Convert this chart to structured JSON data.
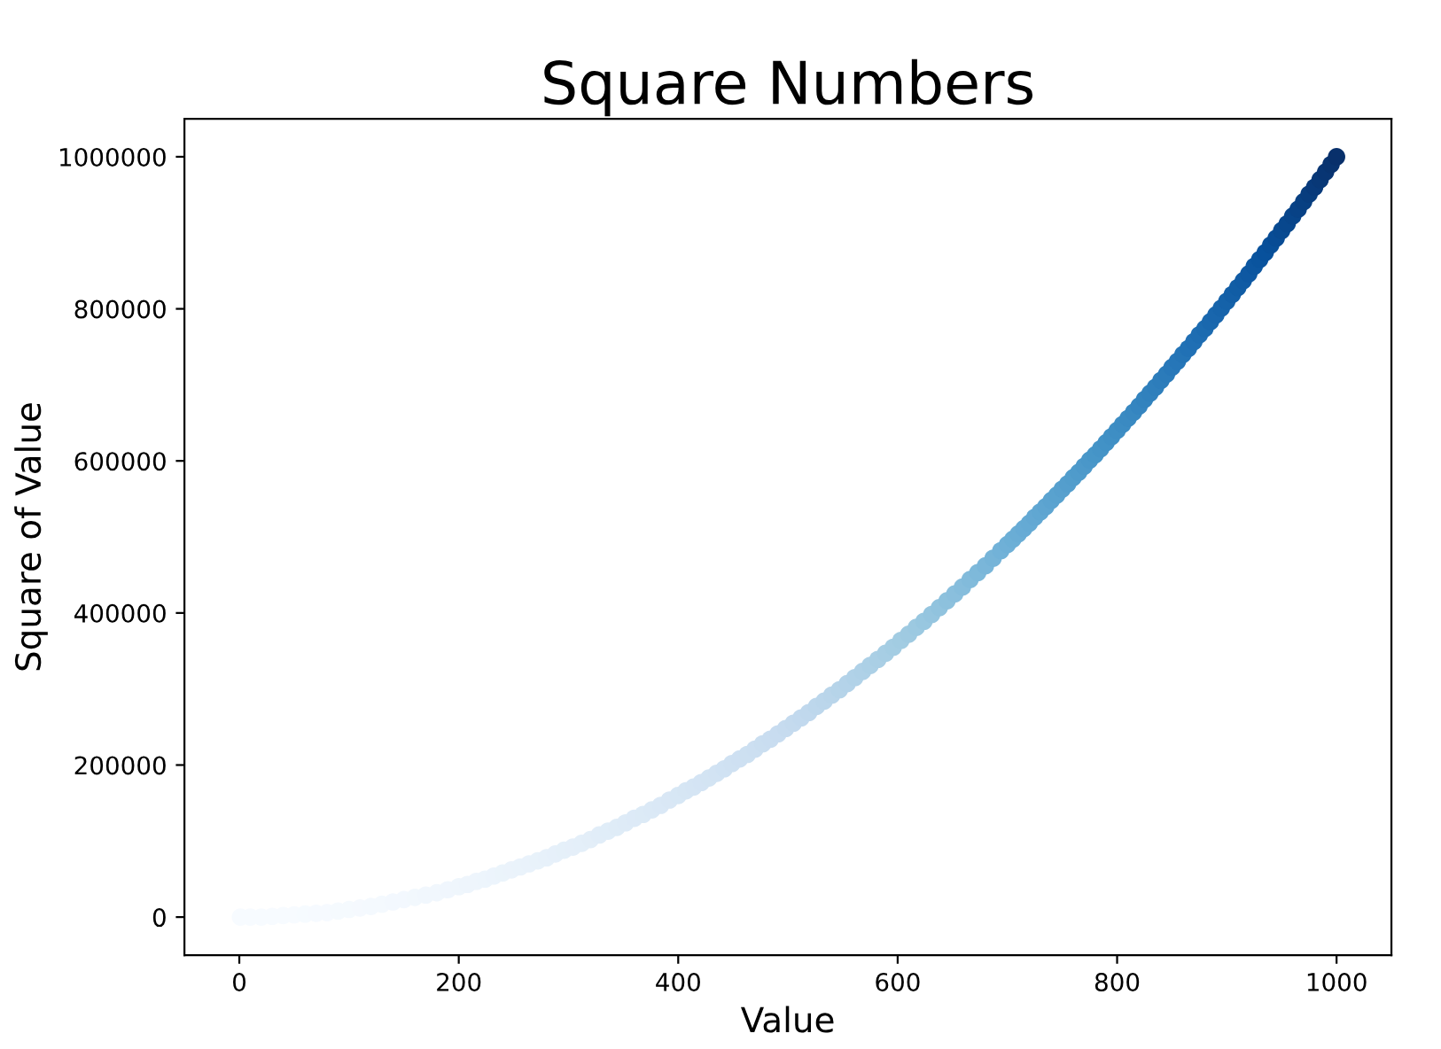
{
  "chart_data": {
    "type": "scatter",
    "title": "Square Numbers",
    "xlabel": "Value",
    "ylabel": "Square of Value",
    "x": [
      1,
      10,
      20,
      30,
      40,
      50,
      60,
      70,
      80,
      90,
      100,
      110,
      120,
      130,
      140,
      150,
      160,
      170,
      180,
      190,
      200,
      208,
      216,
      224,
      232,
      240,
      248,
      256,
      264,
      272,
      280,
      288,
      296,
      304,
      312,
      320,
      328,
      336,
      344,
      352,
      360,
      368,
      376,
      384,
      392,
      400,
      407,
      414,
      421,
      428,
      435,
      442,
      449,
      456,
      463,
      470,
      477,
      484,
      491,
      498,
      505,
      512,
      519,
      526,
      533,
      540,
      547,
      554,
      561,
      568,
      575,
      582,
      589,
      596,
      603,
      610,
      617,
      624,
      631,
      638,
      645,
      652,
      659,
      666,
      673,
      680,
      687,
      694,
      700,
      705,
      710,
      715,
      720,
      725,
      730,
      735,
      740,
      745,
      750,
      755,
      760,
      765,
      770,
      775,
      780,
      785,
      790,
      795,
      800,
      805,
      810,
      815,
      820,
      825,
      830,
      835,
      840,
      845,
      850,
      855,
      860,
      865,
      870,
      875,
      880,
      885,
      890,
      895,
      900,
      905,
      910,
      915,
      920,
      925,
      930,
      935,
      940,
      945,
      950,
      955,
      960,
      965,
      970,
      975,
      980,
      985,
      990,
      995,
      1000
    ],
    "values": [
      0,
      0,
      0,
      1000,
      2000,
      3000,
      4000,
      5000,
      6000,
      8000,
      10000,
      12000,
      14000,
      17000,
      20000,
      23000,
      26000,
      29000,
      32000,
      36000,
      40000,
      43000,
      47000,
      50000,
      54000,
      58000,
      62000,
      66000,
      70000,
      74000,
      78000,
      83000,
      88000,
      92000,
      97000,
      102000,
      108000,
      113000,
      118000,
      124000,
      130000,
      135000,
      141000,
      147000,
      154000,
      160000,
      166000,
      171000,
      177000,
      183000,
      189000,
      195000,
      202000,
      208000,
      214000,
      221000,
      228000,
      234000,
      241000,
      248000,
      255000,
      262000,
      269000,
      277000,
      284000,
      292000,
      299000,
      307000,
      315000,
      323000,
      331000,
      339000,
      347000,
      355000,
      364000,
      372000,
      381000,
      389000,
      398000,
      407000,
      416000,
      425000,
      434000,
      444000,
      453000,
      462000,
      472000,
      482000,
      490000,
      497000,
      504000,
      511000,
      518000,
      526000,
      533000,
      540000,
      548000,
      555000,
      563000,
      570000,
      578000,
      585000,
      593000,
      601000,
      608000,
      616000,
      624000,
      632000,
      640000,
      648000,
      656000,
      664000,
      672000,
      681000,
      689000,
      697000,
      706000,
      714000,
      723000,
      731000,
      740000,
      748000,
      757000,
      766000,
      774000,
      783000,
      792000,
      801000,
      810000,
      819000,
      828000,
      837000,
      846000,
      856000,
      865000,
      874000,
      884000,
      893000,
      903000,
      912000,
      922000,
      931000,
      941000,
      951000,
      960000,
      970000,
      980000,
      990000,
      1000000
    ],
    "colors": [
      "#f7fbff",
      "#f7fbff",
      "#f7fbff",
      "#f7fbff",
      "#f7fbff",
      "#f7fbff",
      "#f6fbff",
      "#f6faff",
      "#f6faff",
      "#f5fafe",
      "#f5fafe",
      "#f5f9fe",
      "#f4f9fe",
      "#f4f9fe",
      "#f3f8fe",
      "#f3f8fe",
      "#f2f8fd",
      "#f1f7fd",
      "#f1f7fd",
      "#f0f6fd",
      "#eff6fc",
      "#eef5fc",
      "#eef5fc",
      "#edf5fc",
      "#ecf4fc",
      "#ebf4fb",
      "#ebf3fb",
      "#eaf3fb",
      "#e9f2fb",
      "#e8f2fa",
      "#e7f1fa",
      "#e6f0fa",
      "#e5f0f9",
      "#e5eff9",
      "#e4eff9",
      "#e3eef8",
      "#e1edf8",
      "#e0edf8",
      "#dfecf7",
      "#deebf7",
      "#ddeaf7",
      "#dceaf6",
      "#dbe9f6",
      "#dae8f6",
      "#d9e7f5",
      "#d7e7f5",
      "#d6e6f4",
      "#d5e5f4",
      "#d4e4f4",
      "#d3e4f3",
      "#d2e3f3",
      "#d0e2f3",
      "#cfe1f2",
      "#cee0f2",
      "#cde0f1",
      "#ccdff1",
      "#cadef0",
      "#c9ddf0",
      "#c8dcf0",
      "#c6dbef",
      "#c4daee",
      "#c2d9ee",
      "#c0d8ed",
      "#bdd7ec",
      "#bbd6eb",
      "#b9d5ea",
      "#b6d4e9",
      "#b4d3e9",
      "#b1d2e8",
      "#afd1e7",
      "#acd0e6",
      "#aacfe5",
      "#a7cee4",
      "#a4cde3",
      "#a2cce2",
      "#9fcae1",
      "#9cc9e1",
      "#98c7e0",
      "#95c5df",
      "#91c3de",
      "#8dc1dd",
      "#8abfdd",
      "#86bddc",
      "#82bbdb",
      "#7eb9da",
      "#7ab6d9",
      "#76b4d8",
      "#72b2d8",
      "#6fb0d7",
      "#6cafd6",
      "#6aadd5",
      "#67abd5",
      "#65aad4",
      "#63a8d3",
      "#60a7d2",
      "#5ea5d1",
      "#5ba3d0",
      "#59a2cf",
      "#57a0ce",
      "#549ecd",
      "#529dcc",
      "#4f9bcb",
      "#4d99ca",
      "#4a97c9",
      "#4796c8",
      "#4594c7",
      "#4292c6",
      "#4090c5",
      "#3e8ec4",
      "#3c8cc3",
      "#3a8ac2",
      "#3888c1",
      "#3585c0",
      "#3383be",
      "#3181bd",
      "#2f7fbc",
      "#2d7dbb",
      "#2b7bba",
      "#2878b9",
      "#2676b8",
      "#2474b6",
      "#2171b5",
      "#206fb4",
      "#1e6db2",
      "#1c6bb0",
      "#1a68ae",
      "#1966ad",
      "#1764ab",
      "#1562a9",
      "#135fa7",
      "#115da5",
      "#105ba4",
      "#0e58a2",
      "#0c56a0",
      "#0a549e",
      "#08519c",
      "#084f99",
      "#084c95",
      "#084a91",
      "#08478d",
      "#08458a",
      "#084286",
      "#084082",
      "#083d7e",
      "#083a7b",
      "#083877",
      "#083573",
      "#08336f",
      "#08306b"
    ],
    "xlim": [
      -50,
      1050
    ],
    "ylim": [
      -50000,
      1050000
    ],
    "xticks": [
      0,
      200,
      400,
      600,
      800,
      1000
    ],
    "yticks": [
      0,
      200000,
      400000,
      600000,
      800000,
      1000000
    ],
    "marker": "circle"
  }
}
